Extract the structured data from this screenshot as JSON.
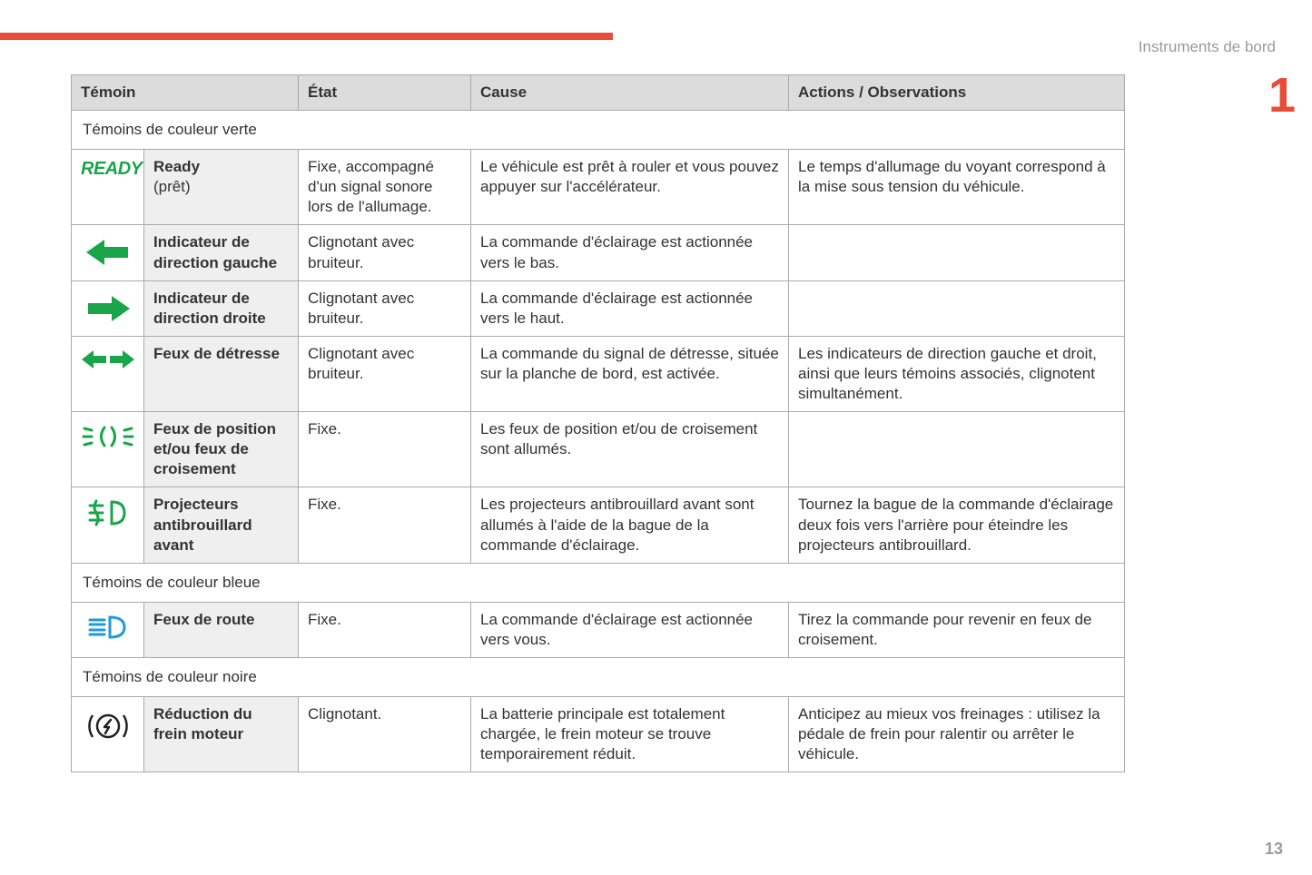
{
  "colors": {
    "accent": "#e84d38",
    "green": "#1aa54a",
    "blue": "#1f9bd7",
    "black": "#222222",
    "header_bg": "#dcdcdc",
    "namecol_bg": "#efefef",
    "border": "#aaaaaa",
    "muted": "#9a9a9a"
  },
  "header": {
    "section": "Instruments de bord",
    "chapter": "1",
    "page": "13"
  },
  "table": {
    "columns": [
      "Témoin",
      "État",
      "Cause",
      "Actions / Observations"
    ],
    "sections": [
      {
        "title": "Témoins de couleur verte",
        "rows": [
          {
            "icon": "ready",
            "name": "Ready",
            "name_sub": "(prêt)",
            "state": "Fixe, accompagné d'un signal sonore lors de l'allumage.",
            "cause": "Le véhicule est prêt à rouler et vous pouvez appuyer sur l'accélérateur.",
            "actions": "Le temps d'allumage du voyant correspond à la mise sous tension du véhicule."
          },
          {
            "icon": "arrow-left",
            "name": "Indicateur de direction gauche",
            "name_sub": "",
            "state": "Clignotant avec bruiteur.",
            "cause": "La commande d'éclairage est actionnée vers le bas.",
            "actions": ""
          },
          {
            "icon": "arrow-right",
            "name": "Indicateur de direction droite",
            "name_sub": "",
            "state": "Clignotant avec bruiteur.",
            "cause": "La commande d'éclairage est actionnée vers le haut.",
            "actions": ""
          },
          {
            "icon": "hazard",
            "name": "Feux de détresse",
            "name_sub": "",
            "state": "Clignotant avec bruiteur.",
            "cause": "La commande du signal de détresse, située sur la planche de bord, est activée.",
            "actions": "Les indicateurs de direction gauche et droit, ainsi que leurs témoins associés, clignotent simultanément."
          },
          {
            "icon": "sidelights",
            "name": "Feux de position et/ou feux de croisement",
            "name_sub": "",
            "state": "Fixe.",
            "cause": "Les feux de position et/ou de croisement sont allumés.",
            "actions": ""
          },
          {
            "icon": "fog-front",
            "name": "Projecteurs antibrouillard avant",
            "name_sub": "",
            "state": "Fixe.",
            "cause": "Les projecteurs antibrouillard avant sont allumés à l'aide de la bague de la commande d'éclairage.",
            "actions": "Tournez la bague de la commande d'éclairage deux fois vers l'arrière pour éteindre les projecteurs antibrouillard."
          }
        ]
      },
      {
        "title": "Témoins de couleur bleue",
        "rows": [
          {
            "icon": "high-beam",
            "name": "Feux de route",
            "name_sub": "",
            "state": "Fixe.",
            "cause": "La commande d'éclairage est actionnée vers vous.",
            "actions": "Tirez la commande pour revenir en feux de croisement."
          }
        ]
      },
      {
        "title": "Témoins de couleur noire",
        "rows": [
          {
            "icon": "brake-regen",
            "name": "Réduction du frein moteur",
            "name_sub": "",
            "state": "Clignotant.",
            "cause": "La batterie principale est totalement chargée, le frein moteur se trouve temporairement réduit.",
            "actions": "Anticipez au mieux vos freinages : utilisez la pédale de frein pour ralentir ou arrêter le véhicule."
          }
        ]
      }
    ]
  }
}
